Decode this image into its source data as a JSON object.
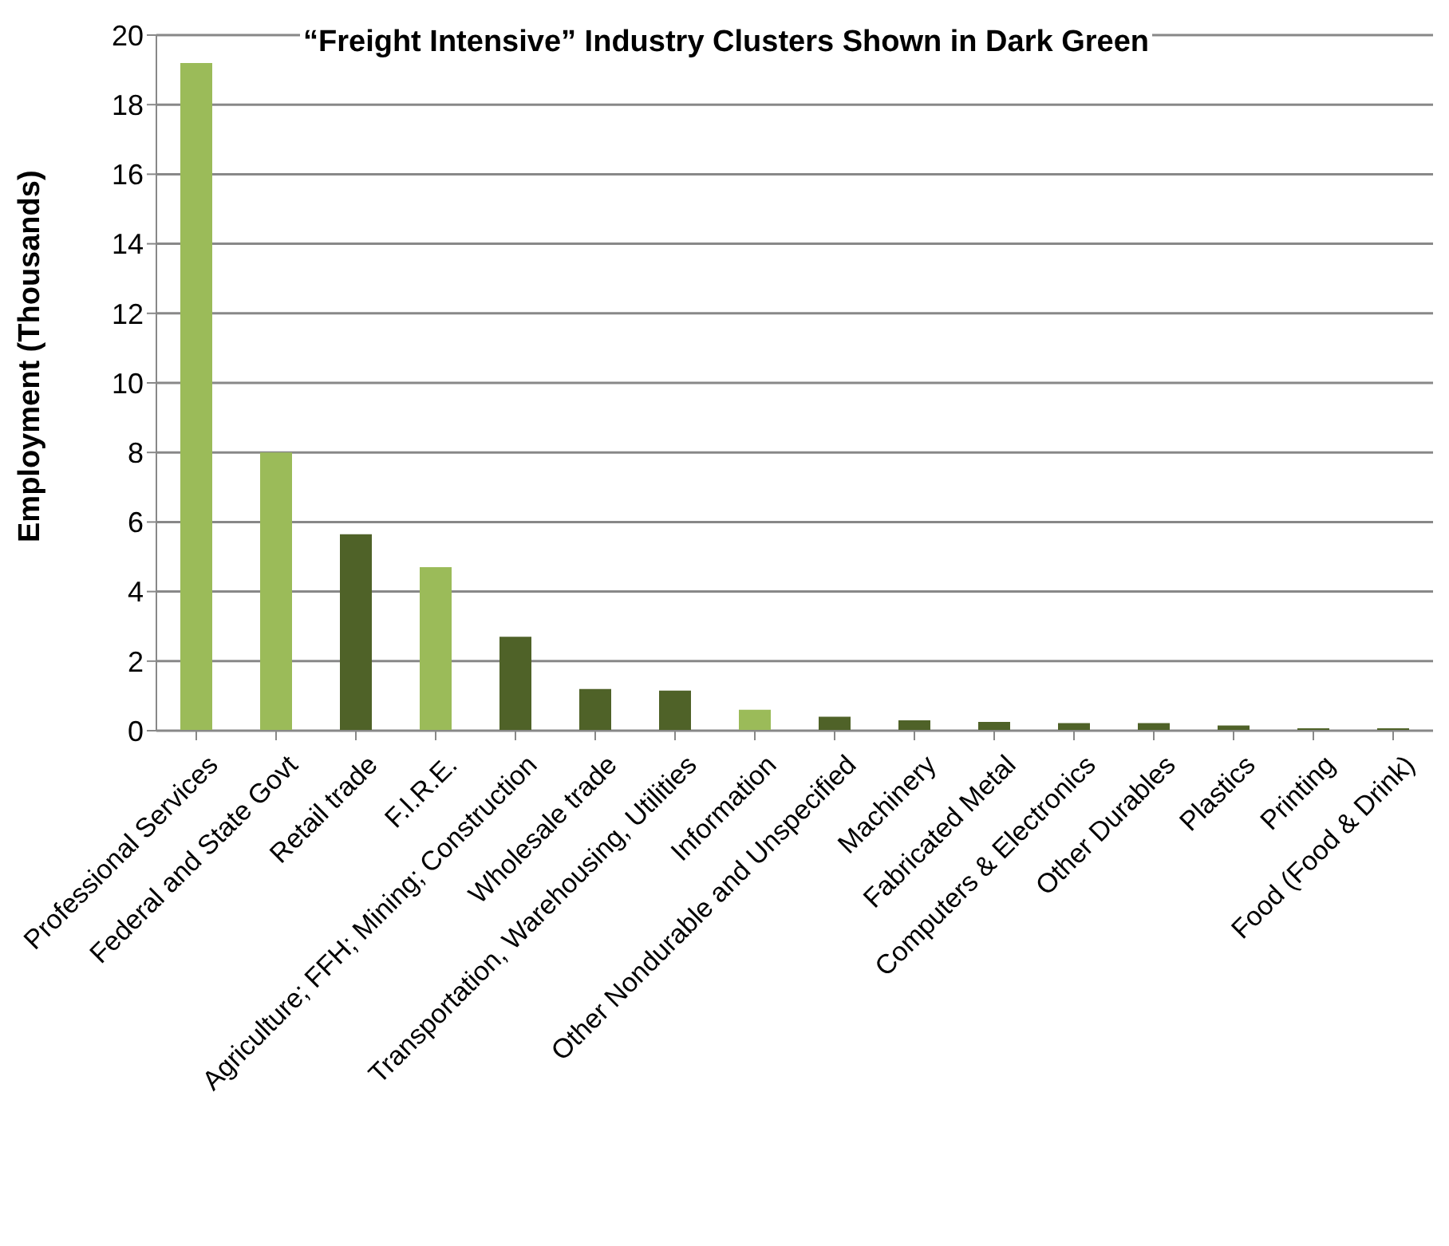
{
  "chart_data": {
    "type": "bar",
    "title": "“Freight Intensive” Industry Clusters Shown in Dark Green",
    "ylabel": "Employment (Thousands)",
    "categories": [
      "Professional Services",
      "Federal and State Govt",
      "Retail trade",
      "F.I.R.E.",
      "Agriculture; FFH; Mining; Construction",
      "Wholesale trade",
      "Transportation, Warehousing, Utilities",
      "Information",
      "Other Nondurable and Unspecified",
      "Machinery",
      "Fabricated Metal",
      "Computers & Electronics",
      "Other Durables",
      "Plastics",
      "Printing",
      "Food (Food & Drink)"
    ],
    "values": [
      19.2,
      8.0,
      5.65,
      4.7,
      2.7,
      1.2,
      1.15,
      0.6,
      0.4,
      0.3,
      0.25,
      0.22,
      0.22,
      0.15,
      0.07,
      0.07
    ],
    "colors": [
      "#9bbb59",
      "#9bbb59",
      "#4f6228",
      "#9bbb59",
      "#4f6228",
      "#4f6228",
      "#4f6228",
      "#9bbb59",
      "#4f6228",
      "#4f6228",
      "#4f6228",
      "#4f6228",
      "#4f6228",
      "#4f6228",
      "#4f6228",
      "#4f6228"
    ],
    "ylim": [
      0,
      20
    ],
    "yticks": [
      0,
      2,
      4,
      6,
      8,
      10,
      12,
      14,
      16,
      18,
      20
    ],
    "grid": "y",
    "legend": false
  }
}
